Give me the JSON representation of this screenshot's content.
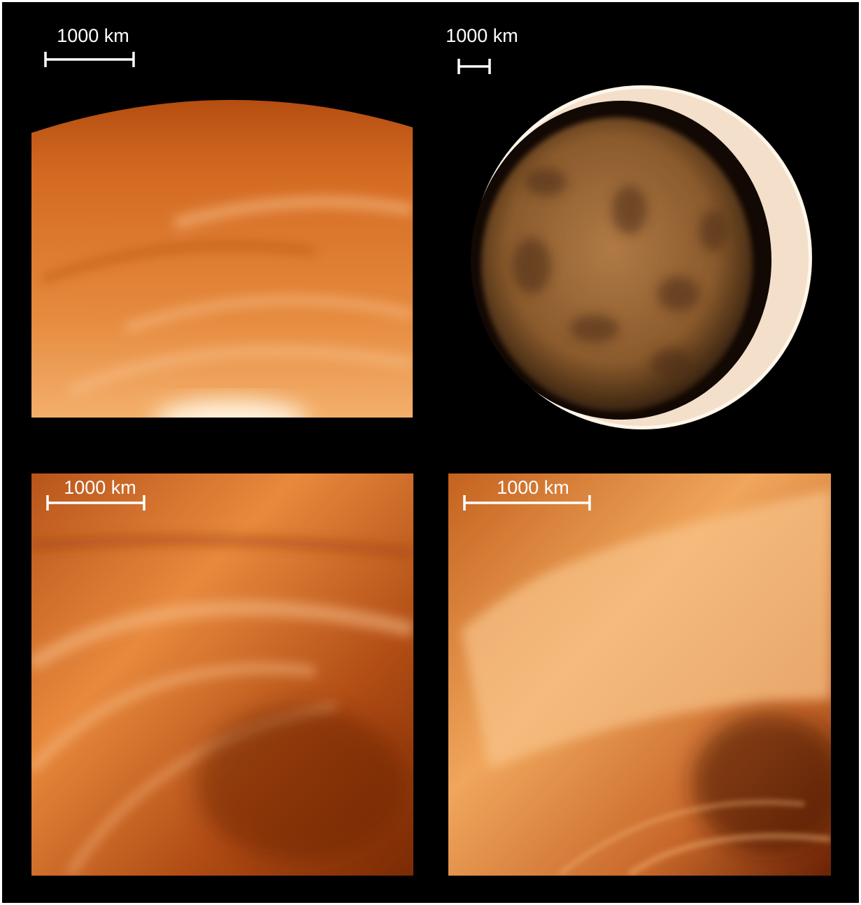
{
  "panels": [
    {
      "scale_label": "1000 km"
    },
    {
      "scale_label": "1000 km"
    },
    {
      "scale_label": "1000 km"
    },
    {
      "scale_label": "1000 km"
    }
  ]
}
